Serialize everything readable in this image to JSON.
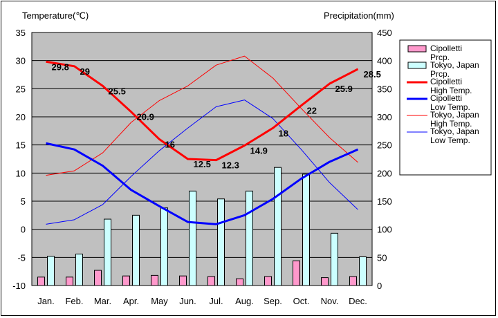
{
  "chart_data": {
    "type": "bar+line",
    "left_axis_title": "Temperature(℃)",
    "right_axis_title": "Precipitation(mm)",
    "categories": [
      "Jan.",
      "Feb.",
      "Mar.",
      "Apr.",
      "May",
      "Jun.",
      "Jul.",
      "Aug.",
      "Sep.",
      "Oct.",
      "Nov.",
      "Dec."
    ],
    "left_ylim": [
      -10,
      35
    ],
    "left_ticks": [
      35,
      30,
      25,
      20,
      15,
      10,
      5,
      0,
      -5,
      -10
    ],
    "right_ylim": [
      0,
      450
    ],
    "right_ticks": [
      450,
      400,
      350,
      300,
      250,
      200,
      150,
      100,
      50,
      0
    ],
    "grid": true,
    "plot_background": "#c0c0c0",
    "legend_position": "right",
    "bar_series": [
      {
        "key": "cip_prcp",
        "legend": [
          "Cipolletti",
          "Prcp."
        ],
        "color": "#ff99cc",
        "values": [
          15,
          15,
          27,
          17,
          18,
          17,
          16,
          12,
          16,
          44,
          14,
          16
        ]
      },
      {
        "key": "tok_prcp",
        "legend": [
          "Tokyo, Japan",
          "Prcp."
        ],
        "color": "#ccffff",
        "values": [
          52,
          56,
          118,
          125,
          138,
          168,
          154,
          168,
          210,
          198,
          93,
          51
        ]
      }
    ],
    "line_series": [
      {
        "key": "cip_high",
        "legend": [
          "Cipolletti",
          "High Temp."
        ],
        "color": "#ff0000",
        "width": 3,
        "show_labels": true,
        "values": [
          29.8,
          29,
          25.5,
          20.9,
          16,
          12.5,
          12.3,
          14.9,
          18,
          22,
          25.9,
          28.5
        ],
        "labels": [
          "29.8",
          "29",
          "25.5",
          "20.9",
          "16",
          "12.5",
          "12.3",
          "14.9",
          "18",
          "22",
          "25.9",
          "28.5"
        ]
      },
      {
        "key": "cip_low",
        "legend": [
          "Cipolletti",
          "Low Temp."
        ],
        "color": "#0000ff",
        "width": 3,
        "show_labels": false,
        "values": [
          15.3,
          14.2,
          11.3,
          7,
          4.1,
          1.3,
          0.9,
          2.5,
          5.4,
          9,
          12,
          14.2
        ]
      },
      {
        "key": "tok_high",
        "legend": [
          "Tokyo, Japan",
          "High Temp."
        ],
        "color": "#ff0000",
        "width": 1,
        "show_labels": false,
        "values": [
          9.6,
          10.4,
          13.6,
          19,
          22.9,
          25.5,
          29.2,
          30.8,
          26.9,
          21.5,
          16.3,
          11.9
        ]
      },
      {
        "key": "tok_low",
        "legend": [
          "Tokyo, Japan",
          "Low Temp."
        ],
        "color": "#0000ff",
        "width": 1,
        "show_labels": false,
        "values": [
          0.9,
          1.7,
          4.4,
          9.4,
          14,
          18,
          21.8,
          23,
          19.7,
          14.2,
          8.3,
          3.5
        ]
      }
    ]
  }
}
